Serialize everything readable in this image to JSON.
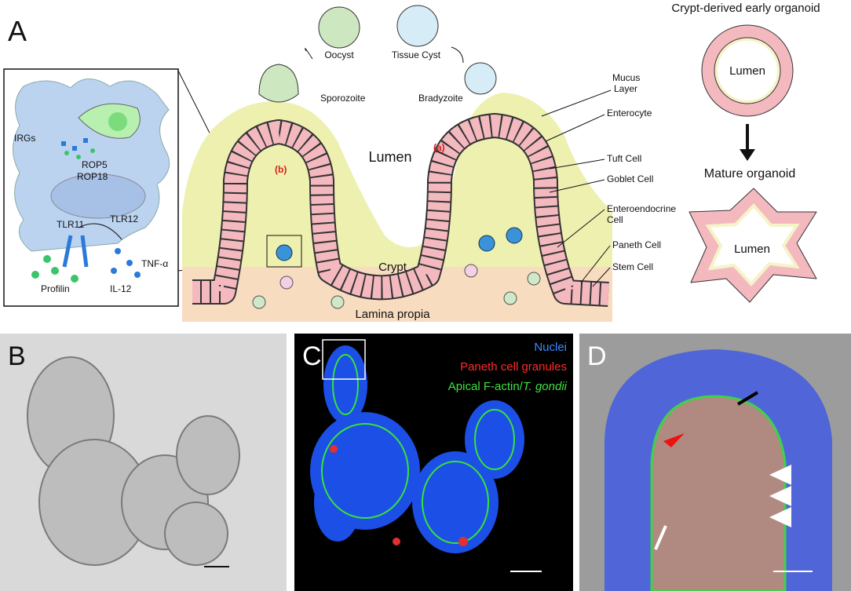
{
  "panel_a": {
    "letter": "A",
    "parasites": {
      "oocyst": "Oocyst",
      "tissue_cyst": "Tissue Cyst",
      "sporozoite": "Sporozoite",
      "bradyzoite": "Bradyzoite"
    },
    "villus": {
      "lumen": "Lumen",
      "crypt": "Crypt",
      "lamina": "Lamina propia",
      "route_a": "(a)",
      "route_b": "(b)"
    },
    "cell_labels": {
      "mucus": [
        "Mucus",
        "Layer"
      ],
      "enterocyte": "Enterocyte",
      "tuft": "Tuft Cell",
      "goblet": "Goblet Cell",
      "enteroendocrine": [
        "Enteroendocrine",
        "Cell"
      ],
      "paneth": "Paneth Cell",
      "stem": "Stem Cell"
    },
    "inset": {
      "irgs": "IRGs",
      "rop5": "ROP5",
      "rop18": "ROP18",
      "tlr11": "TLR11",
      "tlr12": "TLR12",
      "profilin": "Profilin",
      "tnf": "TNF-α",
      "il12": "IL-12"
    },
    "organoids": {
      "early_title": "Crypt-derived early organoid",
      "early_lumen": "Lumen",
      "mature_title": "Mature organoid",
      "mature_lumen": "Lumen"
    }
  },
  "panel_b": {
    "letter": "B"
  },
  "panel_c": {
    "letter": "C",
    "legend": {
      "nuclei": "Nuclei",
      "paneth": "Paneth cell granules",
      "actin": "Apical F-actin/",
      "actin_italic": "T. gondii"
    }
  },
  "panel_d": {
    "letter": "D"
  }
}
